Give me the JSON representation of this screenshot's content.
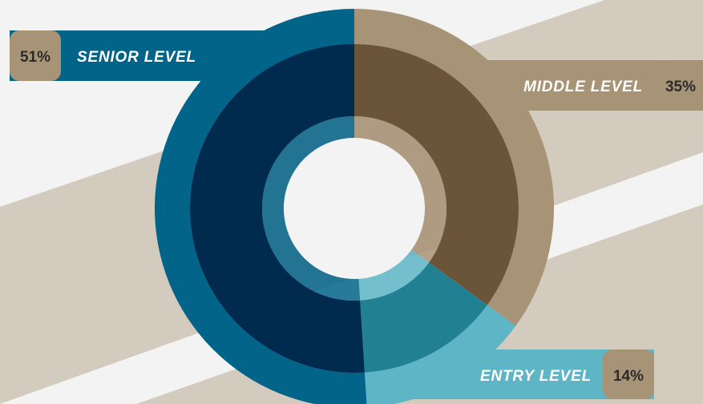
{
  "chart_data": {
    "type": "pie",
    "style": "double-ring donut",
    "categories": [
      "SENIOR LEVEL",
      "MIDDLE LEVEL",
      "ENTRY LEVEL"
    ],
    "values": [
      51,
      35,
      14
    ],
    "percent_labels": [
      "51%",
      "35%",
      "14%"
    ],
    "colors": {
      "senior": {
        "outer": "#03648a",
        "inner": "#002a4e"
      },
      "middle": {
        "outer": "#a79375",
        "inner": "#6b5538"
      },
      "entry": {
        "outer": "#5db5c6",
        "inner": "#218193"
      }
    },
    "legend": "callout tags"
  },
  "labels": [
    {
      "key": "senior",
      "text": "SENIOR LEVEL",
      "pct": "51%"
    },
    {
      "key": "middle",
      "text": "MIDDLE LEVEL",
      "pct": "35%"
    },
    {
      "key": "entry",
      "text": "ENTRY LEVEL",
      "pct": "14%"
    }
  ],
  "theme": {
    "background": "#f3f3f3",
    "band": "#d4cbbf",
    "tag": "#a79375",
    "center": "#f3f3f3"
  }
}
